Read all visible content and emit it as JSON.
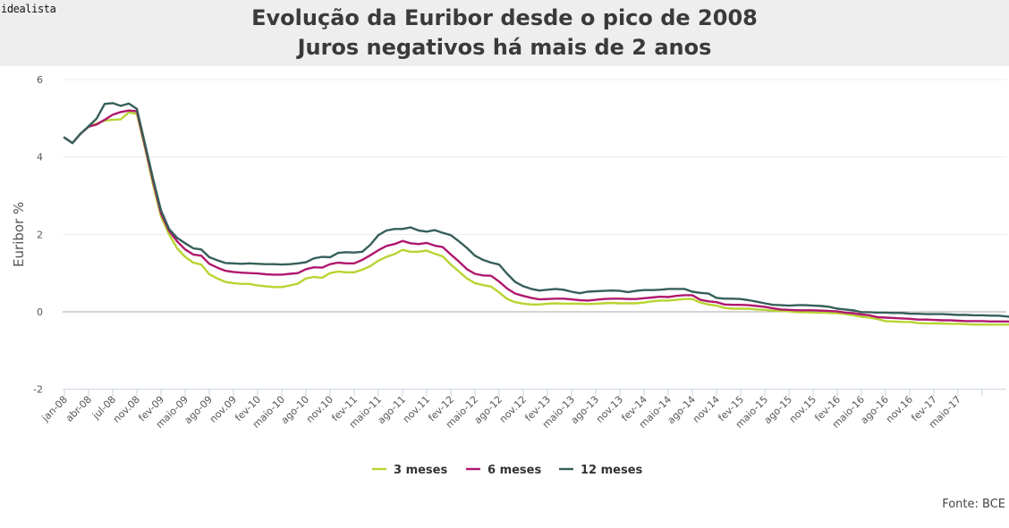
{
  "header": {
    "brand": "idealista",
    "title_line1": "Evolução da Euribor desde o pico de 2008",
    "title_line2": "Juros negativos há mais de 2 anos"
  },
  "source": "Fonte: BCE",
  "colors": {
    "3 meses": "#b8d432",
    "6 meses": "#b0186e",
    "12 meses": "#365f5a",
    "header_bg": "#eeeeee"
  },
  "chart_data": {
    "type": "line",
    "title": "Evolução da Euribor desde o pico de 2008 / Juros negativos há mais de 2 anos",
    "xlabel": "",
    "ylabel": "Euribor %",
    "ylim": [
      -2,
      6
    ],
    "yticks": [
      6,
      4,
      2,
      0,
      -2
    ],
    "grid": true,
    "legend_position": "bottom-center",
    "xtick_labels": [
      "jan-08",
      "abr-08",
      "jul-08",
      "nov.08",
      "fev-09",
      "maio-09",
      "ago-09",
      "nov.09",
      "fev-10",
      "maio-10",
      "ago-10",
      "nov.10",
      "fev-11",
      "maio-11",
      "ago-11",
      "nov.11",
      "fev-12",
      "maio-12",
      "ago-12",
      "nov.12",
      "fev-13",
      "maio-13",
      "ago-13",
      "nov.13",
      "fev-14",
      "maio-14",
      "ago-14",
      "nov.14",
      "fev-15",
      "maio-15",
      "ago-15",
      "nov.15",
      "fev-16",
      "maio-16",
      "ago-16",
      "nov.16",
      "fev-17",
      "maio-17"
    ],
    "series": [
      {
        "name": "3 meses",
        "color": "#b8d432",
        "values": [
          4.5,
          4.36,
          4.6,
          4.78,
          4.86,
          4.94,
          4.96,
          4.97,
          5.15,
          5.11,
          4.24,
          3.29,
          2.46,
          2.0,
          1.64,
          1.42,
          1.27,
          1.22,
          0.97,
          0.86,
          0.77,
          0.74,
          0.72,
          0.72,
          0.68,
          0.66,
          0.64,
          0.64,
          0.68,
          0.73,
          0.86,
          0.9,
          0.88,
          1.0,
          1.04,
          1.02,
          1.02,
          1.09,
          1.18,
          1.32,
          1.42,
          1.49,
          1.6,
          1.55,
          1.55,
          1.58,
          1.5,
          1.43,
          1.22,
          1.04,
          0.86,
          0.74,
          0.69,
          0.65,
          0.5,
          0.33,
          0.25,
          0.21,
          0.19,
          0.19,
          0.21,
          0.22,
          0.21,
          0.21,
          0.21,
          0.2,
          0.21,
          0.22,
          0.23,
          0.22,
          0.22,
          0.22,
          0.24,
          0.27,
          0.29,
          0.29,
          0.31,
          0.33,
          0.33,
          0.24,
          0.19,
          0.16,
          0.1,
          0.08,
          0.08,
          0.08,
          0.06,
          0.05,
          0.03,
          0.02,
          0.01,
          -0.01,
          -0.01,
          -0.02,
          -0.02,
          -0.03,
          -0.04,
          -0.06,
          -0.09,
          -0.13,
          -0.15,
          -0.19,
          -0.24,
          -0.25,
          -0.26,
          -0.26,
          -0.29,
          -0.3,
          -0.3,
          -0.3,
          -0.31,
          -0.31,
          -0.32,
          -0.33,
          -0.33,
          -0.33,
          -0.33,
          -0.33,
          -0.33
        ]
      },
      {
        "name": "6 meses",
        "color": "#b0186e",
        "values": [
          4.5,
          4.36,
          4.6,
          4.78,
          4.84,
          4.96,
          5.09,
          5.16,
          5.2,
          5.18,
          4.29,
          3.39,
          2.54,
          2.09,
          1.82,
          1.61,
          1.48,
          1.45,
          1.24,
          1.14,
          1.06,
          1.03,
          1.01,
          1.0,
          0.99,
          0.97,
          0.96,
          0.96,
          0.98,
          1.0,
          1.1,
          1.15,
          1.14,
          1.23,
          1.27,
          1.25,
          1.25,
          1.34,
          1.46,
          1.59,
          1.7,
          1.75,
          1.83,
          1.77,
          1.75,
          1.78,
          1.71,
          1.67,
          1.48,
          1.3,
          1.1,
          0.98,
          0.94,
          0.93,
          0.78,
          0.6,
          0.47,
          0.41,
          0.36,
          0.32,
          0.33,
          0.34,
          0.34,
          0.32,
          0.3,
          0.29,
          0.31,
          0.33,
          0.34,
          0.34,
          0.33,
          0.33,
          0.35,
          0.37,
          0.39,
          0.38,
          0.41,
          0.43,
          0.43,
          0.31,
          0.27,
          0.25,
          0.19,
          0.18,
          0.18,
          0.17,
          0.15,
          0.13,
          0.09,
          0.06,
          0.05,
          0.04,
          0.04,
          0.04,
          0.03,
          0.02,
          0.01,
          -0.02,
          -0.04,
          -0.07,
          -0.09,
          -0.14,
          -0.15,
          -0.16,
          -0.17,
          -0.18,
          -0.2,
          -0.2,
          -0.21,
          -0.22,
          -0.22,
          -0.23,
          -0.24,
          -0.24,
          -0.24,
          -0.25,
          -0.25,
          -0.25,
          -0.26
        ]
      },
      {
        "name": "12 meses",
        "color": "#365f5a",
        "values": [
          4.5,
          4.36,
          4.6,
          4.79,
          4.99,
          5.37,
          5.39,
          5.32,
          5.38,
          5.24,
          4.35,
          3.45,
          2.62,
          2.14,
          1.91,
          1.77,
          1.64,
          1.61,
          1.41,
          1.33,
          1.26,
          1.25,
          1.24,
          1.25,
          1.24,
          1.23,
          1.23,
          1.22,
          1.23,
          1.25,
          1.28,
          1.38,
          1.42,
          1.41,
          1.52,
          1.54,
          1.53,
          1.55,
          1.73,
          1.98,
          2.1,
          2.14,
          2.14,
          2.18,
          2.1,
          2.07,
          2.11,
          2.04,
          1.98,
          1.82,
          1.65,
          1.45,
          1.34,
          1.27,
          1.22,
          0.98,
          0.77,
          0.66,
          0.59,
          0.55,
          0.57,
          0.59,
          0.57,
          0.52,
          0.48,
          0.52,
          0.53,
          0.54,
          0.55,
          0.54,
          0.51,
          0.54,
          0.56,
          0.56,
          0.57,
          0.59,
          0.59,
          0.59,
          0.52,
          0.49,
          0.47,
          0.36,
          0.34,
          0.34,
          0.33,
          0.3,
          0.26,
          0.22,
          0.18,
          0.17,
          0.16,
          0.17,
          0.17,
          0.16,
          0.15,
          0.13,
          0.08,
          0.06,
          0.04,
          -0.01,
          -0.01,
          -0.02,
          -0.02,
          -0.03,
          -0.03,
          -0.05,
          -0.05,
          -0.06,
          -0.06,
          -0.06,
          -0.07,
          -0.08,
          -0.08,
          -0.09,
          -0.09,
          -0.1,
          -0.1,
          -0.12,
          -0.14
        ]
      }
    ]
  }
}
